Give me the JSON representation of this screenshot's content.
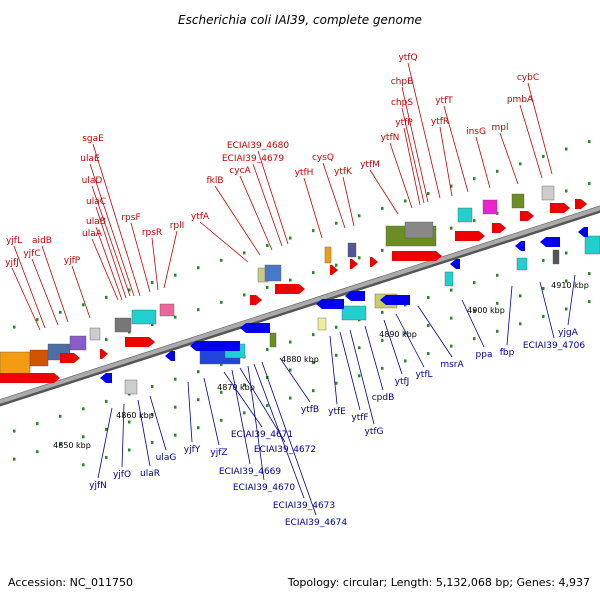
{
  "title": "Escherichia coli IAI39, complete genome",
  "footer": {
    "accession": "Accession: NC_011750",
    "summary": "Topology: circular; Length: 5,132,068 bp; Genes: 4,937"
  },
  "colors": {
    "forward_label": "#cc0000",
    "reverse_label": "#00009a",
    "forward_arrow": "#ee0000",
    "reverse_arrow": "#0000ee",
    "backbone": "#888888",
    "tick": "#228B22"
  },
  "kbp_ticks": [
    "4850 kbp",
    "4860 kbp",
    "4870 kbp",
    "4880 kbp",
    "4890 kbp",
    "4900 kbp",
    "4910 kbp"
  ],
  "forward_genes": [
    "yjfJ",
    "yjfL",
    "yjfC",
    "aidB",
    "yjfP",
    "ulaA",
    "ulaB",
    "ulaC",
    "ulaD",
    "ulaE",
    "sgaE",
    "rpsF",
    "rpsR",
    "rplI",
    "ytfA",
    "fklB",
    "cycA",
    "ECIAI39_4679",
    "ECIAI39_4680",
    "ytfH",
    "cysQ",
    "ytfK",
    "ytfM",
    "ytfN",
    "ytfP",
    "chpS",
    "chpB",
    "ytfQ",
    "ytfR",
    "ytfT",
    "insG",
    "mpl",
    "pmbA",
    "cybC"
  ],
  "reverse_genes": [
    "yjfN",
    "yjfO",
    "ulaR",
    "ulaG",
    "yjfY",
    "yjfZ",
    "ECIAI39_4671",
    "ECIAI39_4669",
    "ECIAI39_4672",
    "ECIAI39_4670",
    "ECIAI39_4673",
    "ECIAI39_4674",
    "ytfB",
    "ytfE",
    "ytfF",
    "ytfG",
    "cpdB",
    "ytfJ",
    "ytfL",
    "msrA",
    "ppa",
    "fbp",
    "ECIAI39_4706",
    "yjgA"
  ]
}
